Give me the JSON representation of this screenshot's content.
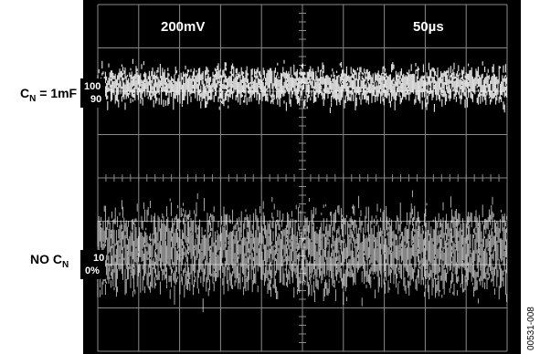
{
  "chart_data": {
    "type": "line",
    "scope": {
      "volts_per_div": "200mV",
      "time_per_div": "50µs",
      "divisions_x": 10,
      "divisions_y": 8,
      "grid": true,
      "background_color": "#000000",
      "trace_color": "#ffffff",
      "grid_color": "#8a8a8a"
    },
    "traces": [
      {
        "name": "C_N = 1mF",
        "label_main": "C",
        "label_sub": "N",
        "label_suffix": " = 1mF",
        "markers": [
          "100",
          "90"
        ],
        "center_div": 1.8,
        "noise_band_div": 1.0
      },
      {
        "name": "NO C_N",
        "label_main": "NO C",
        "label_sub": "N",
        "label_suffix": "",
        "markers": [
          "10",
          "0%"
        ],
        "center_div": 5.6,
        "noise_band_div": 2.3
      }
    ]
  },
  "figure_id": "00531-008"
}
